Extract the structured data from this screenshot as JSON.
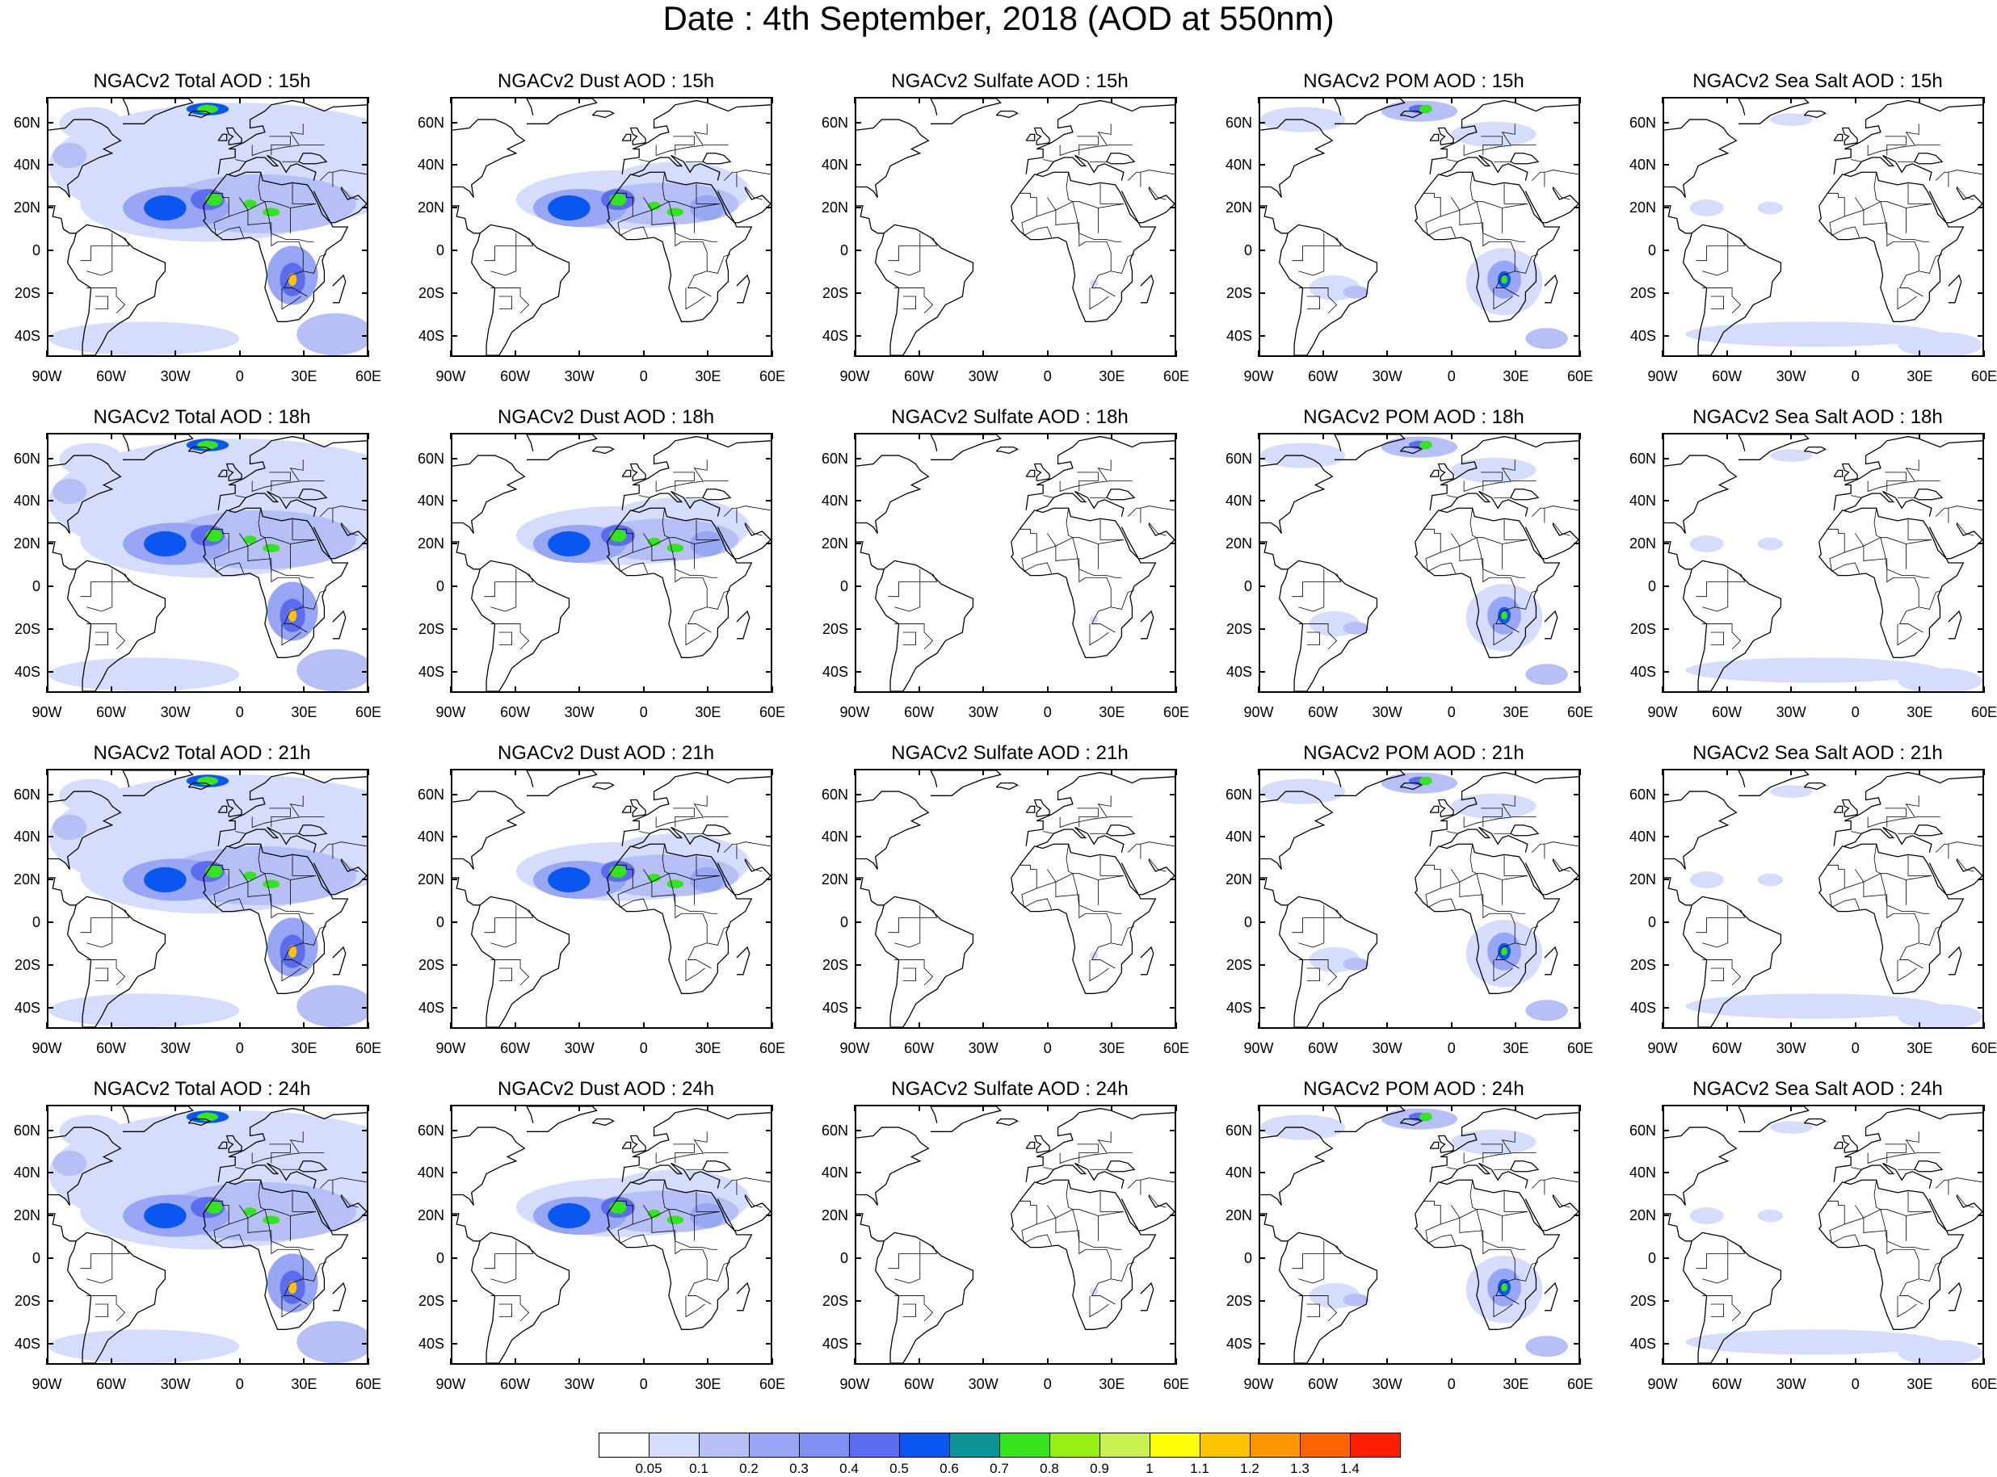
{
  "title": "Date : 4th September, 2018 (AOD at 550nm)",
  "panel_titles": [
    [
      "NGACv2 Total AOD : 15h",
      "NGACv2 Dust AOD : 15h",
      "NGACv2 Sulfate AOD : 15h",
      "NGACv2 POM AOD : 15h",
      "NGACv2 Sea Salt AOD : 15h"
    ],
    [
      "NGACv2 Total AOD : 18h",
      "NGACv2 Dust AOD : 18h",
      "NGACv2 Sulfate AOD : 18h",
      "NGACv2 POM AOD : 18h",
      "NGACv2 Sea Salt AOD : 18h"
    ],
    [
      "NGACv2 Total AOD : 21h",
      "NGACv2 Dust AOD : 21h",
      "NGACv2 Sulfate AOD : 21h",
      "NGACv2 POM AOD : 21h",
      "NGACv2 Sea Salt AOD : 21h"
    ],
    [
      "NGACv2 Total AOD : 24h",
      "NGACv2 Dust AOD : 24h",
      "NGACv2 Sulfate AOD : 24h",
      "NGACv2 POM AOD : 24h",
      "NGACv2 Sea Salt  AOD : 24h"
    ]
  ],
  "lat_labels": [
    "60N",
    "40N",
    "20N",
    "0",
    "20S",
    "40S"
  ],
  "lat_values": [
    60,
    40,
    20,
    0,
    -20,
    -40
  ],
  "lon_labels": [
    "90W",
    "60W",
    "30W",
    "0",
    "30E",
    "60E"
  ],
  "lon_values": [
    -90,
    -60,
    -30,
    0,
    30,
    60
  ],
  "map_extent": {
    "lon": [
      -90,
      60
    ],
    "lat": [
      -50,
      72
    ]
  },
  "colorbar": {
    "labels": [
      "0.05",
      "0.1",
      "0.2",
      "0.3",
      "0.4",
      "0.5",
      "0.6",
      "0.7",
      "0.8",
      "0.9",
      "1",
      "1.1",
      "1.2",
      "1.3",
      "1.4"
    ],
    "colors": [
      "#ffffff",
      "#d6dcfb",
      "#b6c0f7",
      "#97a6f5",
      "#7f90f2",
      "#5b6cf0",
      "#0a56f0",
      "#0a9496",
      "#33e51a",
      "#96f014",
      "#c8f050",
      "#ffff00",
      "#ffc300",
      "#ff9600",
      "#ff6400",
      "#ff1e00"
    ]
  },
  "colors": {
    "land_outline": "#000000",
    "frame": "#000000"
  }
}
